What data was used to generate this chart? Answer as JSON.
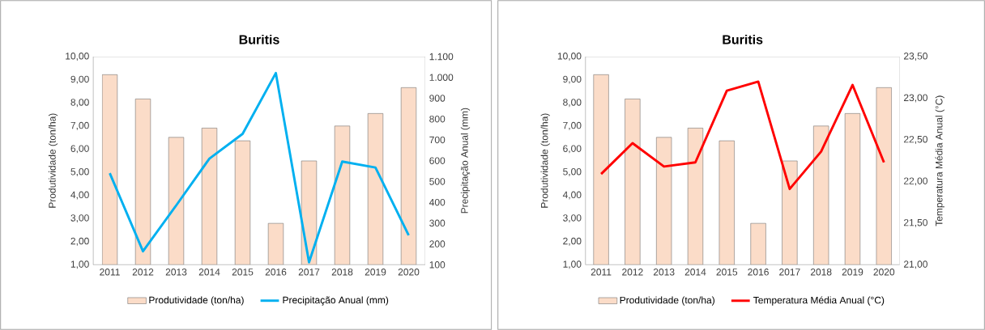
{
  "chart_data": [
    {
      "type": "bar",
      "title": "Buritis",
      "ylabel": "Produtividade (ton/ha)",
      "y2label": "Precipitação Anual (mm)",
      "categories": [
        "2011",
        "2012",
        "2013",
        "2014",
        "2015",
        "2016",
        "2017",
        "2018",
        "2019",
        "2020"
      ],
      "series": [
        {
          "name": "Produtividade (ton/ha)",
          "color": "#fbdcc8",
          "values": [
            9.22,
            8.17,
            6.51,
            6.91,
            6.36,
            2.79,
            5.49,
            7.0,
            7.54,
            8.66
          ]
        },
        {
          "name": "Precipitação Anual (mm)",
          "type": "line",
          "axis": "y2",
          "color": "#00b0f0",
          "values": [
            540,
            165,
            385,
            610,
            729,
            1021,
            112,
            596,
            567,
            242
          ]
        }
      ],
      "ylim": [
        1,
        10
      ],
      "yticks": [
        {
          "value": 1,
          "label": "1,00"
        },
        {
          "value": 2,
          "label": "2,00"
        },
        {
          "value": 3,
          "label": "3,00"
        },
        {
          "value": 4,
          "label": "4,00"
        },
        {
          "value": 5,
          "label": "5,00"
        },
        {
          "value": 6,
          "label": "6,00"
        },
        {
          "value": 7,
          "label": "7,00"
        },
        {
          "value": 8,
          "label": "8,00"
        },
        {
          "value": 9,
          "label": "9,00"
        },
        {
          "value": 10,
          "label": "10,00"
        }
      ],
      "y2lim": [
        100,
        1100
      ],
      "y2ticks": [
        100,
        200,
        300,
        400,
        500,
        600,
        700,
        800,
        900,
        {
          "value": 1000,
          "label": "1.000"
        },
        {
          "value": 1100,
          "label": "1.100"
        }
      ],
      "legend": "bottom",
      "grid": false
    },
    {
      "type": "bar",
      "title": "Buritis",
      "ylabel": "Produtividade (ton/ha)",
      "y2label": "Temperatura Média Anual (°C)",
      "categories": [
        "2011",
        "2012",
        "2013",
        "2014",
        "2015",
        "2016",
        "2017",
        "2018",
        "2019",
        "2020"
      ],
      "series": [
        {
          "name": "Produtividade (ton/ha)",
          "color": "#fbdcc8",
          "values": [
            9.22,
            8.17,
            6.51,
            6.91,
            6.36,
            2.79,
            5.49,
            7.0,
            7.54,
            8.66
          ]
        },
        {
          "name": "Temperatura Média Anual (°C)",
          "type": "line",
          "axis": "y2",
          "color": "#ff0000",
          "values": [
            22.09,
            22.46,
            22.18,
            22.23,
            23.09,
            23.2,
            21.91,
            22.36,
            23.16,
            22.23
          ]
        }
      ],
      "ylim": [
        1,
        10
      ],
      "yticks": [
        {
          "value": 1,
          "label": "1,00"
        },
        {
          "value": 2,
          "label": "2,00"
        },
        {
          "value": 3,
          "label": "3,00"
        },
        {
          "value": 4,
          "label": "4,00"
        },
        {
          "value": 5,
          "label": "5,00"
        },
        {
          "value": 6,
          "label": "6,00"
        },
        {
          "value": 7,
          "label": "7,00"
        },
        {
          "value": 8,
          "label": "8,00"
        },
        {
          "value": 9,
          "label": "9,00"
        },
        {
          "value": 10,
          "label": "10,00"
        }
      ],
      "y2lim": [
        21,
        23.5
      ],
      "y2ticks": [
        {
          "value": 21,
          "label": "21,00"
        },
        {
          "value": 21.5,
          "label": "21,50"
        },
        {
          "value": 22,
          "label": "22,00"
        },
        {
          "value": 22.5,
          "label": "22,50"
        },
        {
          "value": 23,
          "label": "23,00"
        },
        {
          "value": 23.5,
          "label": "23,50"
        }
      ],
      "legend": "bottom",
      "grid": false
    }
  ]
}
